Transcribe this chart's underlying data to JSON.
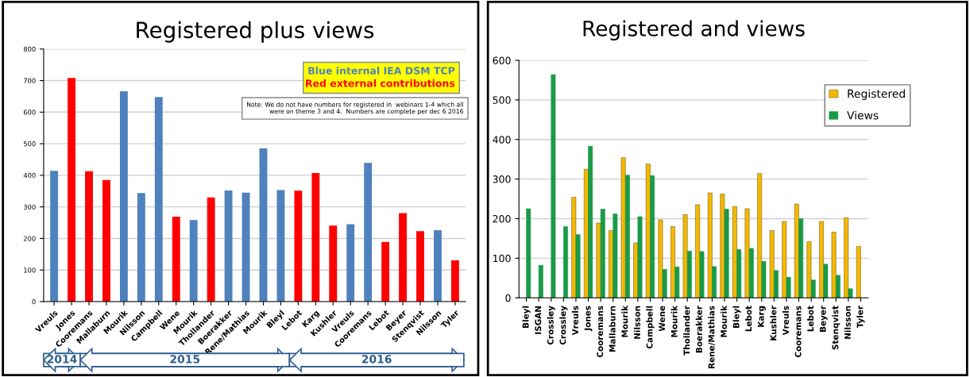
{
  "chart_data": [
    {
      "type": "bar",
      "title": "Registered plus views",
      "categories": [
        "Vreuls",
        "Jones",
        "Cooremans",
        "Mallaburn",
        "Mourik",
        "Nilsson",
        "Campbell",
        "Wene",
        "Mourik",
        "Thollander",
        "Boerakker",
        "Rene/Mathias",
        "Mourik",
        "Bleyl",
        "Lebot",
        "Karg",
        "Kushler",
        "Vreuls",
        "Cooremans",
        "Lebot",
        "Beyer",
        "Stenqvist",
        "Nilsson",
        "Tyler"
      ],
      "values": [
        414,
        708,
        413,
        385,
        666,
        344,
        648,
        269,
        258,
        330,
        352,
        345,
        485,
        353,
        351,
        407,
        241,
        245,
        439,
        189,
        280,
        223,
        226,
        131
      ],
      "colors": [
        "#4f81bd",
        "#ff0000",
        "#ff0000",
        "#ff0000",
        "#4f81bd",
        "#4f81bd",
        "#4f81bd",
        "#ff0000",
        "#4f81bd",
        "#ff0000",
        "#4f81bd",
        "#4f81bd",
        "#4f81bd",
        "#4f81bd",
        "#ff0000",
        "#ff0000",
        "#ff0000",
        "#4f81bd",
        "#4f81bd",
        "#ff0000",
        "#ff0000",
        "#ff0000",
        "#4f81bd",
        "#ff0000"
      ],
      "ylim": [
        0,
        800
      ],
      "yticks": [
        0,
        100,
        200,
        300,
        400,
        500,
        600,
        700,
        800
      ],
      "grid": "y",
      "annotations": [
        "Blue internal IEA DSM TCP",
        "Red external contributions",
        "Note: We do not have numbers for registered in  webinars 1-4 which all\nwere on theme 3 and 4.  Numbers are complete per dec 6 2016",
        "2014",
        "2015",
        "2016"
      ]
    },
    {
      "type": "bar",
      "title": "Registered and views",
      "categories": [
        "Bleyl",
        "ISGAN",
        "Crossley",
        "Crossley",
        "Vreuls",
        "Jones",
        "Cooremans",
        "Mallaburn",
        "Mourik",
        "Nilsson",
        "Campbell",
        "Wene",
        "Mourik",
        "Thollander",
        "Boerakker",
        "Rene/Mathias",
        "Mourik",
        "Bleyl",
        "Lebot",
        "Karg",
        "Kushler",
        "Vreuls",
        "Cooremans",
        "Lebot",
        "Beyer",
        "Stenqvist",
        "Nilsson",
        "Tyler"
      ],
      "series": [
        {
          "name": "Registered",
          "color": "#f5b800",
          "values": [
            null,
            null,
            null,
            null,
            254,
            325,
            189,
            170,
            354,
            139,
            338,
            197,
            180,
            210,
            235,
            265,
            262,
            231,
            225,
            314,
            170,
            193,
            237,
            142,
            193,
            166,
            202,
            130
          ]
        },
        {
          "name": "Views",
          "color": "#1a9a48",
          "values": [
            225,
            82,
            564,
            180,
            160,
            383,
            224,
            212,
            310,
            205,
            309,
            72,
            78,
            118,
            117,
            79,
            224,
            122,
            125,
            92,
            69,
            52,
            200,
            45,
            85,
            57,
            23,
            null
          ]
        }
      ],
      "ylim": [
        0,
        600
      ],
      "yticks": [
        0,
        100,
        200,
        300,
        400,
        500,
        600
      ],
      "grid": "y",
      "legend": "right"
    }
  ]
}
